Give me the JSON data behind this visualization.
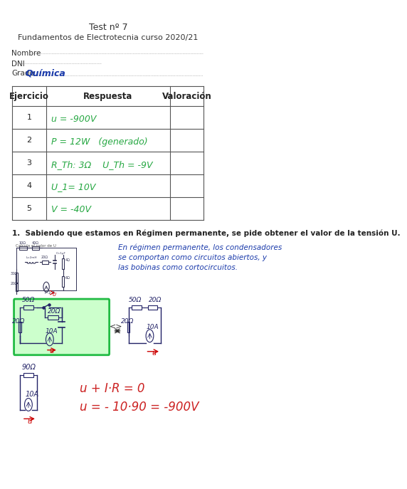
{
  "title": "Test nº 7",
  "subtitle": "Fundamentos de Electrotecnia curso 2020/21",
  "nombre_label": "Nombre",
  "dni_label": "DNI",
  "grado_label": "Grado",
  "grado_value": "Química",
  "table_headers": [
    "Ejercicio",
    "Respuesta",
    "Valoración"
  ],
  "table_rows": [
    [
      "1",
      "u = -900V",
      ""
    ],
    [
      "2",
      "P = 12W   (generado)",
      ""
    ],
    [
      "3",
      "R_Th: 3Ω    U_Th = -9V",
      ""
    ],
    [
      "4",
      "U_1= 10V",
      ""
    ],
    [
      "5",
      "V = -40V",
      ""
    ]
  ],
  "question1": "1.  Sabiendo que estamos en Régimen permanente, se pide obtener el valor de la tensión U.",
  "explanation": "En régimen permanente, los condensadores\nse comportan como circuitos abiertos, y\nlas bobinas como cortocircuitos.",
  "equation1": "u + I·R = 0",
  "equation2": "u = - 10·90 = -900V",
  "bg_color": "#ffffff",
  "text_color": "#222222",
  "green_color": "#2ecc40",
  "blue_color": "#1a3a8a",
  "red_color": "#cc2222"
}
